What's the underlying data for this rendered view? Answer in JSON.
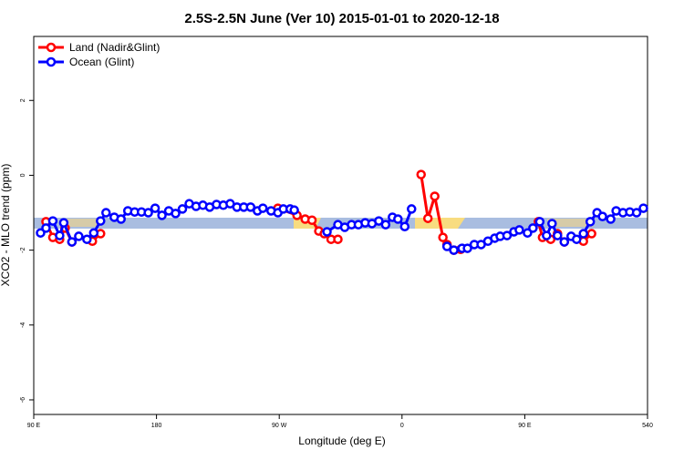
{
  "chart_data": {
    "type": "line",
    "title": "2.5S-2.5N June (Ver 10)   2015-01-01 to 2020-12-18",
    "xlabel": "Longitude (deg E)",
    "ylabel": "XCO2 - MLO trend (ppm)",
    "xlim": [
      90,
      540
    ],
    "ylim": [
      -6.39,
      3.71
    ],
    "xticks": [
      {
        "value": 90,
        "label": "90 E"
      },
      180,
      {
        "value": 270,
        "label": "90 W"
      },
      {
        "value": 360,
        "label": "0"
      },
      {
        "value": 450,
        "label": "90 E"
      },
      540
    ],
    "yticks": [
      -6,
      -4,
      -2,
      0,
      2
    ],
    "legend": "topleft",
    "series": [
      {
        "name": "Land (Nadir&Glint)",
        "color": "#ff0000",
        "x": [
          99,
          104,
          109,
          113,
          118,
          null,
          133,
          139,
          null,
          269,
          283,
          289,
          294,
          299,
          303,
          308,
          313,
          null,
          374,
          379,
          384,
          390,
          393,
          398,
          403,
          null,
          460,
          463,
          469,
          474,
          479,
          null,
          493,
          499
        ],
        "values": [
          -1.24,
          -1.66,
          -1.71,
          -1.41,
          -1.78,
          null,
          -1.76,
          -1.56,
          null,
          -0.88,
          -1.07,
          -1.17,
          -1.2,
          -1.49,
          -1.56,
          -1.71,
          -1.71,
          null,
          0.02,
          -1.15,
          -0.56,
          -1.66,
          -1.85,
          -2.0,
          -1.98,
          null,
          -1.24,
          -1.66,
          -1.71,
          -1.56,
          -1.78,
          null,
          -1.76,
          -1.56
        ]
      },
      {
        "name": "Ocean (Glint)",
        "color": "#0000ff",
        "x": [
          95,
          99,
          104,
          109,
          112,
          118,
          123,
          129,
          134,
          139,
          143,
          149,
          154,
          159,
          164,
          169,
          174,
          179,
          184,
          189,
          194,
          199,
          204,
          209,
          214,
          219,
          224,
          229,
          234,
          239,
          244,
          249,
          254,
          258,
          264,
          269,
          273,
          278,
          281,
          null,
          305,
          313,
          318,
          323,
          328,
          333,
          338,
          343,
          348,
          353,
          357,
          362,
          367,
          null,
          393,
          398,
          404,
          408,
          413,
          418,
          423,
          428,
          432,
          437,
          442,
          446,
          452,
          456,
          461,
          466,
          470,
          474,
          479,
          484,
          488,
          493,
          498,
          503,
          507,
          513,
          517,
          522,
          527,
          532,
          537
        ],
        "values": [
          -1.54,
          -1.41,
          -1.22,
          -1.61,
          -1.27,
          -1.78,
          -1.63,
          -1.71,
          -1.54,
          -1.22,
          -1.0,
          -1.12,
          -1.17,
          -0.95,
          -0.98,
          -0.98,
          -1.0,
          -0.88,
          -1.07,
          -0.95,
          -1.02,
          -0.9,
          -0.76,
          -0.83,
          -0.8,
          -0.85,
          -0.78,
          -0.8,
          -0.76,
          -0.85,
          -0.85,
          -0.85,
          -0.95,
          -0.88,
          -0.95,
          -1.0,
          -0.9,
          -0.9,
          -0.93,
          null,
          -1.51,
          -1.32,
          -1.39,
          -1.32,
          -1.32,
          -1.27,
          -1.29,
          -1.22,
          -1.32,
          -1.12,
          -1.17,
          -1.37,
          -0.9,
          null,
          -1.9,
          -2.0,
          -1.95,
          -1.95,
          -1.85,
          -1.85,
          -1.76,
          -1.68,
          -1.63,
          -1.61,
          -1.51,
          -1.46,
          -1.54,
          -1.41,
          -1.24,
          -1.61,
          -1.29,
          -1.61,
          -1.78,
          -1.63,
          -1.71,
          -1.56,
          -1.24,
          -1.0,
          -1.1,
          -1.17,
          -0.95,
          -1.0,
          -0.98,
          -1.0,
          -0.88
        ]
      }
    ]
  }
}
